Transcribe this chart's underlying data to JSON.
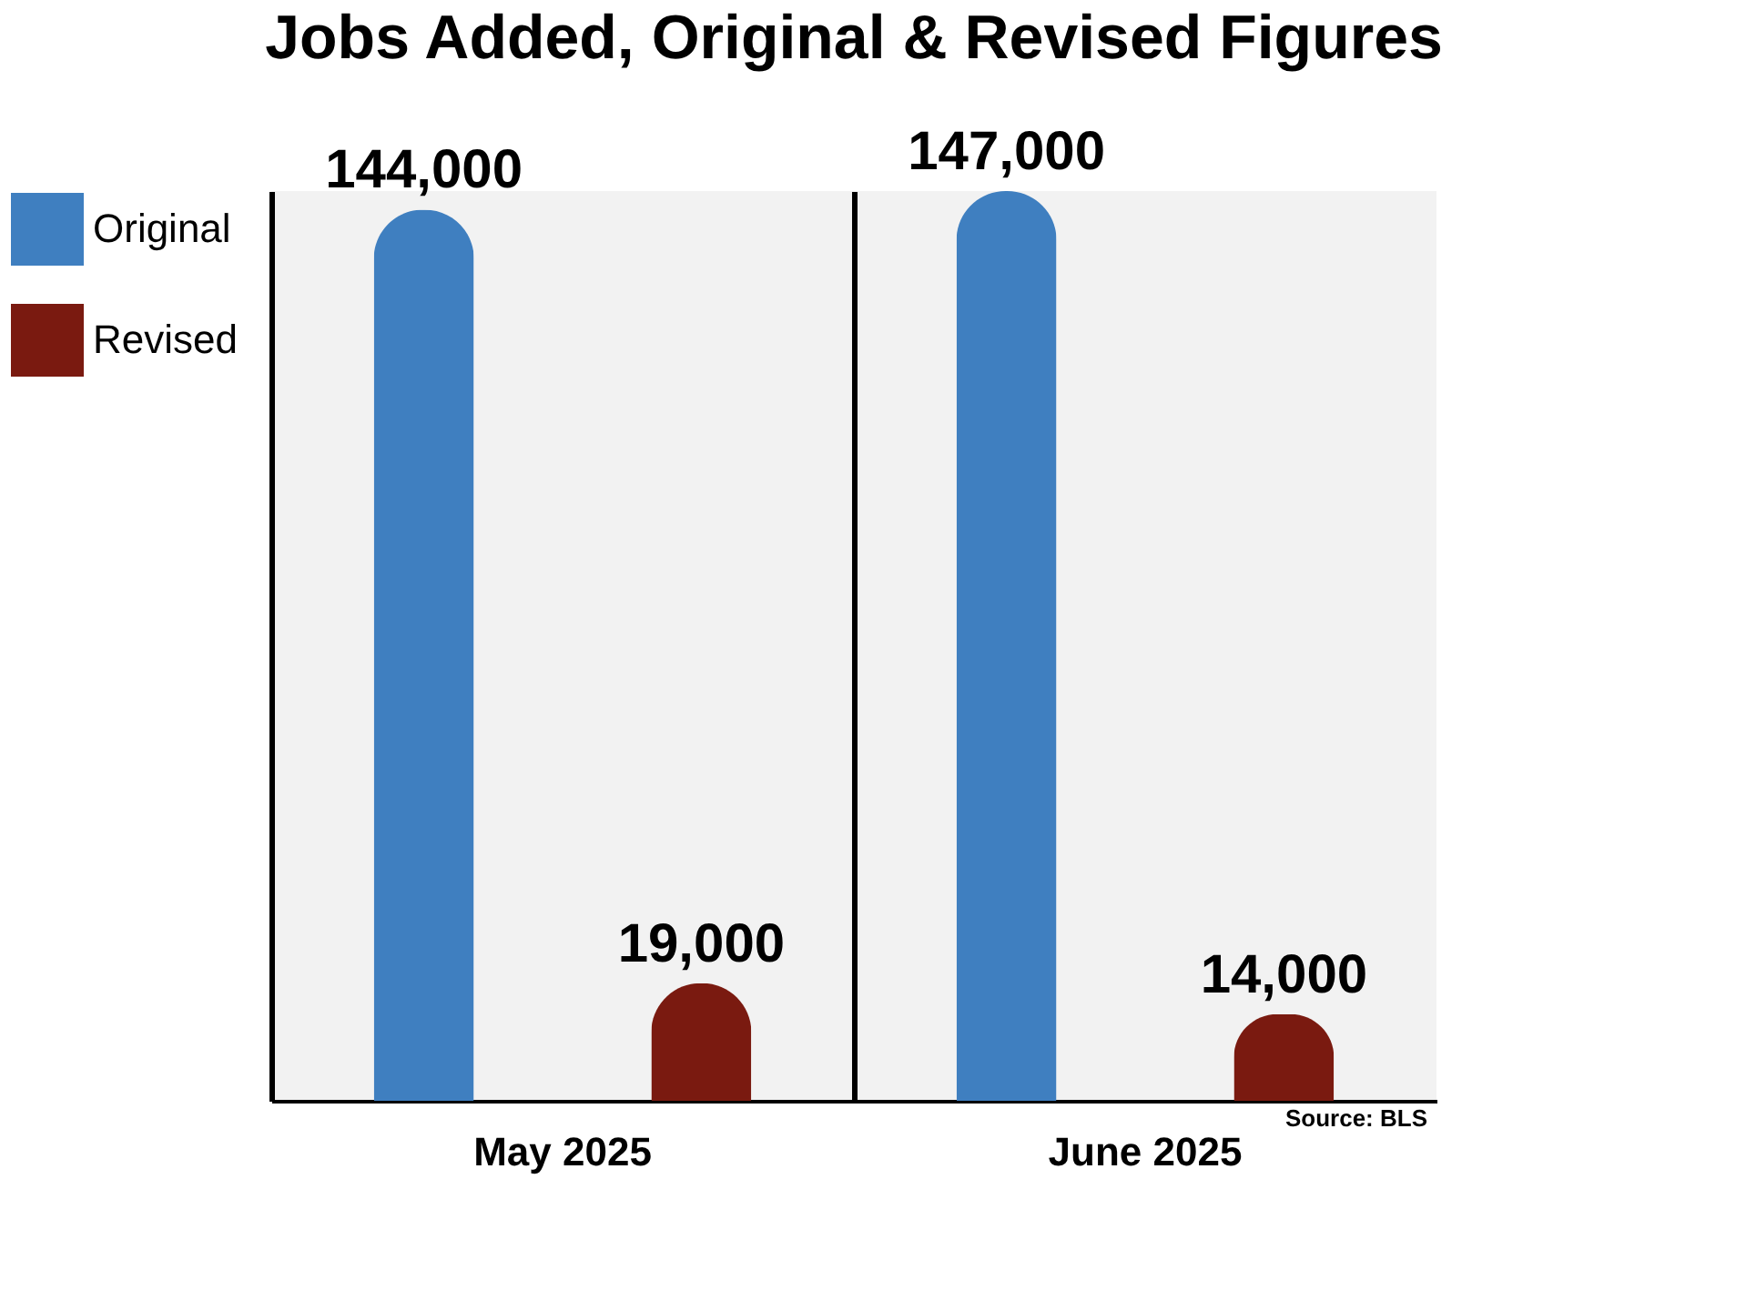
{
  "chart_data": {
    "type": "bar",
    "title": "Jobs Added, Original & Revised Figures",
    "categories": [
      "May 2025",
      "June 2025"
    ],
    "series": [
      {
        "name": "Original",
        "color": "#3f7fc0",
        "values": [
          144000,
          147000
        ],
        "value_labels": [
          "144,000",
          "147,000"
        ]
      },
      {
        "name": "Revised",
        "color": "#7a1a10",
        "values": [
          19000,
          14000
        ],
        "value_labels": [
          "19,000",
          "14,000"
        ]
      }
    ],
    "legend": "left",
    "annotations": [
      "Source: BLS"
    ]
  }
}
